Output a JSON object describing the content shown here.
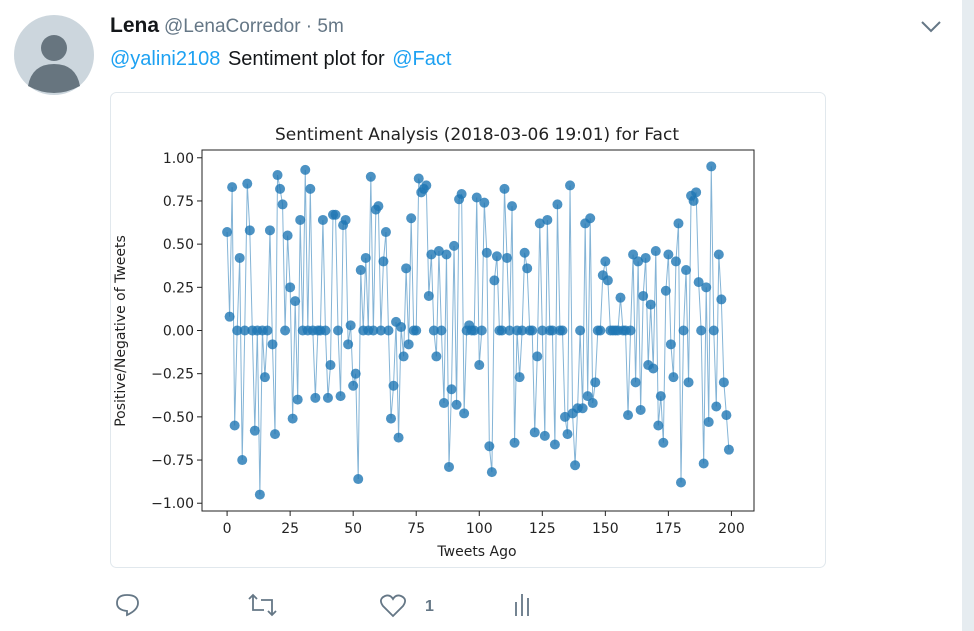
{
  "tweet": {
    "name": "Lena",
    "meta": "@LenaCorredor · 5m",
    "mention": "@yalini2108",
    "text": "Sentiment plot for",
    "mention2": "@Fact",
    "likes": 1
  },
  "chart_data": {
    "type": "scatter",
    "title": "Sentiment Analysis (2018-03-06 19:01) for Fact",
    "xlabel": "Tweets Ago",
    "ylabel": "Positive/Negative of Tweets",
    "color": "#1f77b4",
    "x": [
      0,
      1,
      2,
      3,
      4,
      5,
      6,
      7,
      8,
      9,
      10,
      11,
      12,
      13,
      14,
      15,
      16,
      17,
      18,
      19,
      20,
      21,
      22,
      23,
      24,
      25,
      26,
      27,
      28,
      29,
      30,
      31,
      32,
      33,
      34,
      35,
      36,
      37,
      38,
      39,
      40,
      41,
      42,
      43,
      44,
      45,
      46,
      47,
      48,
      49,
      50,
      51,
      52,
      53,
      54,
      55,
      56,
      57,
      58,
      59,
      60,
      61,
      62,
      63,
      64,
      65,
      66,
      67,
      68,
      69,
      70,
      71,
      72,
      73,
      74,
      75,
      76,
      77,
      78,
      79,
      80,
      81,
      82,
      83,
      84,
      85,
      86,
      87,
      88,
      89,
      90,
      91,
      92,
      93,
      94,
      95,
      96,
      97,
      98,
      99,
      100,
      101,
      102,
      103,
      104,
      105,
      106,
      107,
      108,
      109,
      110,
      111,
      112,
      113,
      114,
      115,
      116,
      117,
      118,
      119,
      120,
      121,
      122,
      123,
      124,
      125,
      126,
      127,
      128,
      129,
      130,
      131,
      132,
      133,
      134,
      135,
      136,
      137,
      138,
      139,
      140,
      141,
      142,
      143,
      144,
      145,
      146,
      147,
      148,
      149,
      150,
      151,
      152,
      153,
      154,
      155,
      156,
      157,
      158,
      159,
      160,
      161,
      162,
      163,
      164,
      165,
      166,
      167,
      168,
      169,
      170,
      171,
      172,
      173,
      174,
      175,
      176,
      177,
      178,
      179,
      180,
      181,
      182,
      183,
      184,
      185,
      186,
      187,
      188,
      189,
      190,
      191,
      192,
      193,
      194,
      195,
      196,
      197,
      198,
      199
    ],
    "values": [
      0.57,
      0.08,
      0.83,
      -0.55,
      0,
      0.42,
      -0.75,
      0,
      0.85,
      0.58,
      0,
      -0.58,
      0,
      -0.95,
      0,
      -0.27,
      0,
      0.58,
      -0.08,
      -0.6,
      0.9,
      0.82,
      0.73,
      0,
      0.55,
      0.25,
      -0.51,
      0.17,
      -0.4,
      0.64,
      0,
      0.93,
      0,
      0.82,
      0,
      -0.39,
      0,
      0,
      0.64,
      0,
      -0.39,
      -0.2,
      0.67,
      0.67,
      0,
      -0.38,
      0.61,
      0.64,
      -0.08,
      0.03,
      -0.32,
      -0.25,
      -0.86,
      0.35,
      0,
      0.42,
      0,
      0.89,
      0,
      0.7,
      0.72,
      0,
      0.4,
      0.57,
      0,
      -0.51,
      -0.32,
      0.05,
      -0.62,
      0.02,
      -0.15,
      0.36,
      -0.08,
      0.65,
      0,
      0,
      0.88,
      0.8,
      0.82,
      0.84,
      0.2,
      0.44,
      0,
      -0.15,
      0.46,
      0,
      -0.42,
      0.44,
      -0.79,
      -0.34,
      0.49,
      -0.43,
      0.76,
      0.79,
      -0.48,
      0,
      0.03,
      0,
      0,
      0.77,
      -0.2,
      0,
      0.74,
      0.45,
      -0.67,
      -0.82,
      0.29,
      0.43,
      0,
      0,
      0.82,
      0.42,
      0,
      0.72,
      -0.65,
      0,
      -0.27,
      0,
      0.45,
      0.36,
      0,
      0,
      -0.59,
      -0.15,
      0.62,
      0,
      -0.61,
      0.64,
      0,
      0,
      -0.66,
      0.73,
      0,
      0,
      -0.5,
      -0.6,
      0.84,
      -0.48,
      -0.78,
      -0.45,
      0,
      -0.45,
      0.62,
      -0.38,
      0.65,
      -0.42,
      -0.3,
      0,
      0,
      0.32,
      0.4,
      0.29,
      0,
      0,
      0,
      0,
      0.19,
      0,
      0,
      -0.49,
      0,
      0.44,
      -0.3,
      0.4,
      -0.46,
      0.2,
      0.42,
      -0.2,
      0.15,
      -0.22,
      0.46,
      -0.55,
      -0.38,
      -0.65,
      0.23,
      0.44,
      -0.08,
      -0.27,
      0.4,
      0.62,
      -0.88,
      0,
      0.35,
      -0.3,
      0.78,
      0.75,
      0.8,
      0.28,
      0,
      -0.77,
      0.25,
      -0.53,
      0.95,
      0,
      -0.44,
      0.44,
      0.18,
      -0.3,
      -0.49,
      -0.69
    ],
    "xlim": [
      -9.95,
      208.95
    ],
    "ylim": [
      -1.045,
      1.045
    ],
    "xticks": [
      0,
      25,
      50,
      75,
      100,
      125,
      150,
      175,
      200
    ],
    "yticks": [
      {
        "value": 1,
        "label": "1.00"
      },
      {
        "value": 0.75,
        "label": "0.75"
      },
      {
        "value": 0.5,
        "label": "0.50"
      },
      {
        "value": 0.25,
        "label": "0.25"
      },
      {
        "value": 0,
        "label": "0.00"
      },
      {
        "value": -0.25,
        "label": "−0.25"
      },
      {
        "value": -0.5,
        "label": "−0.50"
      },
      {
        "value": -0.75,
        "label": "−0.75"
      },
      {
        "value": -1,
        "label": "−1.00"
      }
    ]
  }
}
